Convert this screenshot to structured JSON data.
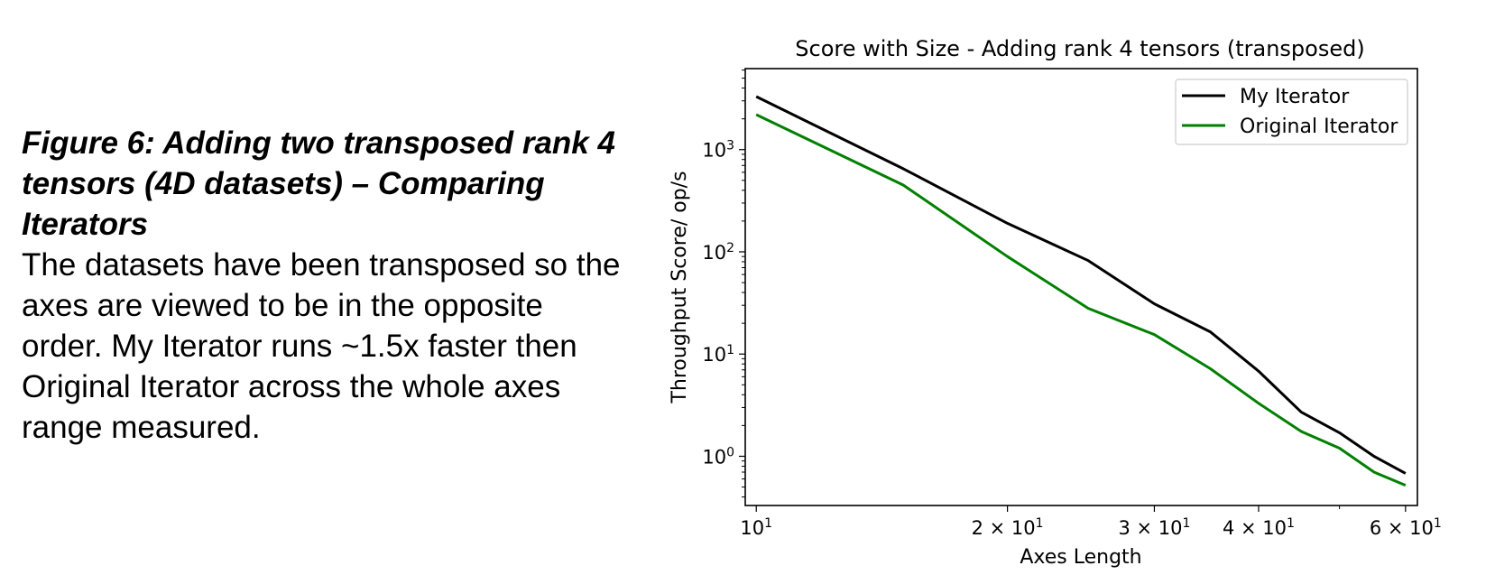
{
  "caption": {
    "title": "Figure 6: Adding two transposed rank 4 tensors (4D datasets) – Comparing Iterators",
    "body": "The datasets have been transposed so the axes are viewed to be in the opposite order. My Iterator runs ~1.5x faster then Original Iterator across the whole axes range measured."
  },
  "chart_data": {
    "type": "line",
    "title": "Score with Size - Adding rank 4 tensors (transposed)",
    "xlabel": "Axes Length",
    "ylabel": "Throughput Score/ op/s",
    "xscale": "log",
    "yscale": "log",
    "xlim": [
      9.7,
      62
    ],
    "ylim": [
      0.33,
      6200
    ],
    "xticks": [
      {
        "value": 10,
        "base": "10",
        "exp": "1"
      },
      {
        "value": 20,
        "base": "2 × 10",
        "exp": "1"
      },
      {
        "value": 30,
        "base": "3 × 10",
        "exp": "1"
      },
      {
        "value": 40,
        "base": "4 × 10",
        "exp": "1"
      },
      {
        "value": 60,
        "base": "6 × 10",
        "exp": "1"
      }
    ],
    "yticks": [
      {
        "value": 1,
        "base": "10",
        "exp": "0"
      },
      {
        "value": 10,
        "base": "10",
        "exp": "1"
      },
      {
        "value": 100,
        "base": "10",
        "exp": "2"
      },
      {
        "value": 1000,
        "base": "10",
        "exp": "3"
      }
    ],
    "grid": false,
    "legend": "top-right",
    "x": [
      10,
      15,
      20,
      25,
      30,
      35,
      40,
      45,
      50,
      55,
      60
    ],
    "series": [
      {
        "name": "My Iterator",
        "color": "#000000",
        "values": [
          3300,
          650,
          190,
          82,
          31,
          16.5,
          6.8,
          2.7,
          1.7,
          1.0,
          0.68
        ]
      },
      {
        "name": "Original Iterator",
        "color": "#008000",
        "values": [
          2200,
          450,
          90,
          28,
          15.5,
          7.2,
          3.3,
          1.75,
          1.2,
          0.7,
          0.52
        ]
      }
    ]
  }
}
